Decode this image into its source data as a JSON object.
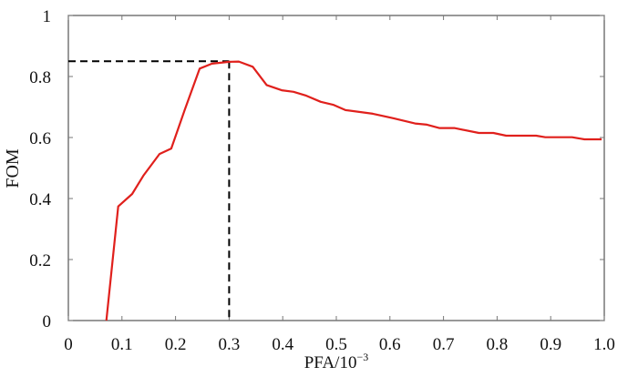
{
  "chart_data": {
    "type": "line",
    "title": "",
    "xlabel": "PFA/10",
    "xlabel_exponent": "−3",
    "ylabel": "FOM",
    "xlim": [
      0,
      1.0
    ],
    "ylim": [
      0,
      1
    ],
    "xticks": [
      "0",
      "0.1",
      "0.2",
      "0.3",
      "0.4",
      "0.5",
      "0.6",
      "0.7",
      "0.8",
      "0.9",
      "1.0"
    ],
    "yticks": [
      "0",
      "0.2",
      "0.4",
      "0.6",
      "0.8",
      "1"
    ],
    "grid": false,
    "series": [
      {
        "color": "#e0201c",
        "x": [
          0.071,
          0.093,
          0.119,
          0.14,
          0.17,
          0.192,
          0.217,
          0.245,
          0.268,
          0.3,
          0.318,
          0.344,
          0.37,
          0.398,
          0.42,
          0.444,
          0.471,
          0.495,
          0.517,
          0.568,
          0.607,
          0.647,
          0.669,
          0.692,
          0.72,
          0.766,
          0.793,
          0.817,
          0.873,
          0.89,
          0.94,
          0.963,
          0.995
        ],
        "y": [
          0,
          0.374,
          0.415,
          0.475,
          0.546,
          0.564,
          0.69,
          0.826,
          0.842,
          0.848,
          0.849,
          0.832,
          0.772,
          0.755,
          0.75,
          0.737,
          0.717,
          0.707,
          0.69,
          0.678,
          0.663,
          0.646,
          0.642,
          0.631,
          0.631,
          0.615,
          0.615,
          0.606,
          0.606,
          0.601,
          0.601,
          0.594,
          0.594
        ]
      }
    ],
    "annotations": [
      {
        "type": "dashed-reference",
        "x": 0.3,
        "y": 0.85,
        "color": "#000000"
      }
    ]
  }
}
